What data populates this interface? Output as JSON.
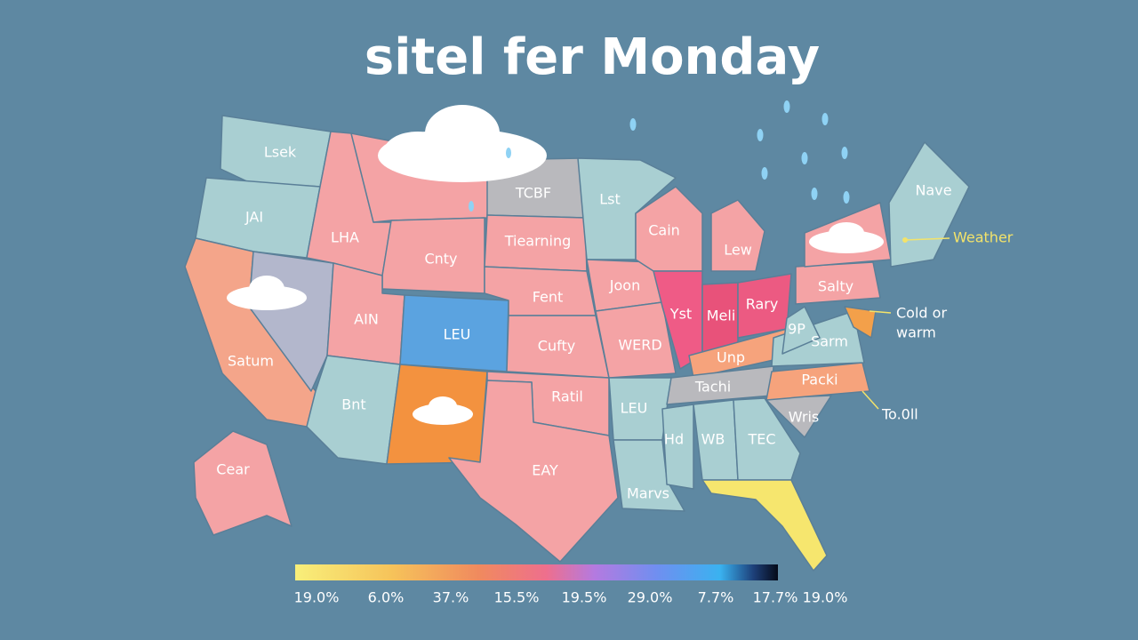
{
  "title": "sitel fer Monday",
  "labels": [
    "Lsek",
    "JAI",
    "LHA",
    "Cnty",
    "TCBF",
    "Lst",
    "Tiearning",
    "Cain",
    "Lew",
    "Nave",
    "Satum",
    "AIN",
    "LEU",
    "Fent",
    "Joon",
    "Yst",
    "Meli",
    "Rary",
    "Salty",
    "9P",
    "Sarm",
    "Cufty",
    "WERD",
    "Unp",
    "Tachi",
    "Packi",
    "Bnt",
    "Ratil",
    "LEU",
    "Wris",
    "Hd",
    "WB",
    "TEC",
    "EAY",
    "Marvs",
    "Cear"
  ],
  "callouts": {
    "weather": "Weather",
    "temp": [
      "Cold or",
      "warm"
    ],
    "total": "To.0ll"
  },
  "legend": {
    "labels": [
      "19.0%",
      "6.0%",
      "37.%",
      "15.5%",
      "19.5%",
      "29.0%",
      "7.7%",
      "17.7%",
      "19.0%"
    ]
  }
}
